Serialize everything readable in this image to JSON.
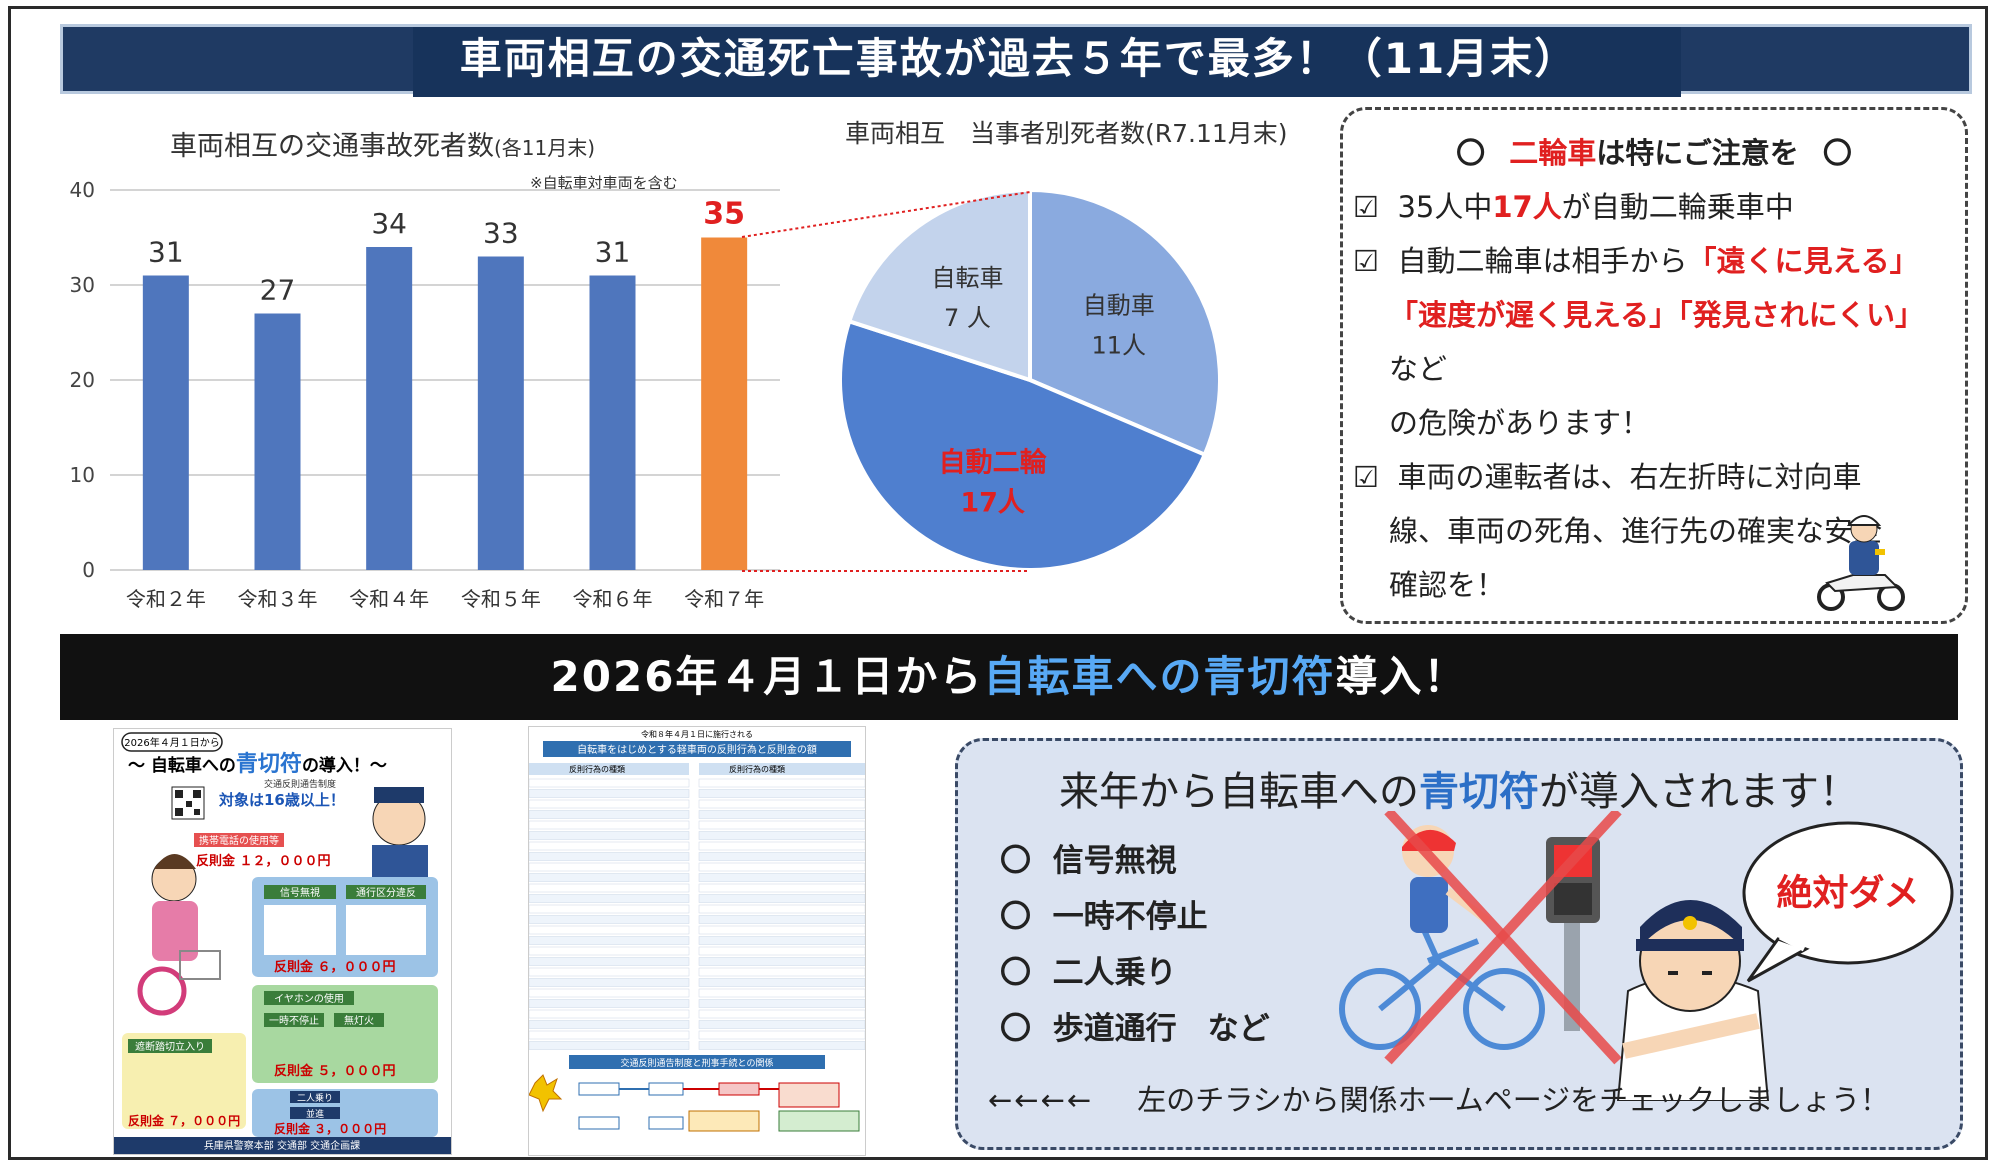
{
  "title": "車両相互の交通死亡事故が過去５年で最多！（11月末）",
  "bar_chart": {
    "title": "車両相互の交通事故死者数",
    "title_suffix": "(各11月末)",
    "note": "※自転車対車両を含む"
  },
  "pie_chart": {
    "title": "車両相互　当事者別死者数(R7.11月末)"
  },
  "chart_data": [
    {
      "type": "bar",
      "title": "車両相互の交通事故死者数(各11月末)",
      "categories": [
        "令和２年",
        "令和３年",
        "令和４年",
        "令和５年",
        "令和６年",
        "令和７年"
      ],
      "values": [
        31,
        27,
        34,
        33,
        31,
        35
      ],
      "ylim": [
        0,
        40
      ],
      "yticks": [
        0,
        10,
        20,
        30,
        40
      ],
      "grid": true,
      "colors": [
        "#4f76bd",
        "#4f76bd",
        "#4f76bd",
        "#4f76bd",
        "#4f76bd",
        "#f0893a"
      ],
      "highlight_label_color": "#e02020"
    },
    {
      "type": "pie",
      "title": "車両相互　当事者別死者数(R7.11月末)",
      "slices": [
        {
          "name": "自動車",
          "value": 11,
          "value_label": "11人",
          "color": "#8aaadf"
        },
        {
          "name": "自動二輪",
          "value": 17,
          "value_label": "17人",
          "color": "#4f7fcf"
        },
        {
          "name": "自転車",
          "value": 7,
          "value_label": "7 人",
          "color": "#c3d3ec"
        }
      ]
    }
  ],
  "callout": {
    "head_mark_left": "〇",
    "head_red": "二輪車",
    "head_rest": "は特にご注意を",
    "head_mark_right": "〇",
    "check": "☑",
    "line1_a": "35人中",
    "line1_red": "17人",
    "line1_b": "が自動二輪乗車中",
    "line2_a": "自動二輪車は相手から",
    "line2_red1": "「遠くに見える」",
    "line3_red1": "「速度が遅く見える」「発見されにくい」",
    "line3_b": "など",
    "line4": "の危険があります！",
    "line5": "車両の運転者は、右左折時に対向車",
    "line6": "線、車両の死角、進行先の確実な安全",
    "line7": "確認を！"
  },
  "sub_banner": {
    "text_a": "2026年４月１日から",
    "text_blue": "自転車への青切符",
    "text_b": "導入！"
  },
  "info": {
    "head_a": "来年から自転車への",
    "head_blue": "青切符",
    "head_b": "が導入されます！",
    "bullet": "〇",
    "rules": [
      "信号無視",
      "一時不停止",
      "二人乗り",
      "歩道通行　など"
    ],
    "bubble": "絶対ダメ",
    "arrows": "←←←←",
    "foot": "左のチラシから関係ホームページをチェックしましょう！"
  },
  "flyer1": {
    "date": "2026年４月１日から",
    "title_a": "～ 自転車への",
    "title_blue": "青切符",
    "title_b": "の導入！～",
    "subtitle": "交通反則通告制度",
    "target": "対象は16歳以上！",
    "phone": "携帯電話の使用等",
    "fine1": "反則金 １２，０００円",
    "signal": "信号無視",
    "sidewalk": "通行区分違反",
    "fine2": "反則金 ６，０００円",
    "earphone": "イヤホンの使用",
    "stop": "一時不停止",
    "nolight": "無灯火",
    "fine3": "反則金 ５，０００円",
    "crossing": "遮断踏切立入り",
    "tandem": "二人乗り",
    "parallel": "並進",
    "fine4": "反則金 ７，０００円",
    "fine5": "反則金 ３，０００円",
    "footer": "兵庫県警察本部 交通部 交通企画課"
  },
  "flyer2": {
    "top": "令和８年４月１日に施行される",
    "title": "自転車をはじめとする軽車両の反則行為と反則金の額",
    "col1": "反則行為の種類",
    "col2": "反則行為の種類",
    "section": "交通反則通告制度と刑事手続との関係"
  }
}
